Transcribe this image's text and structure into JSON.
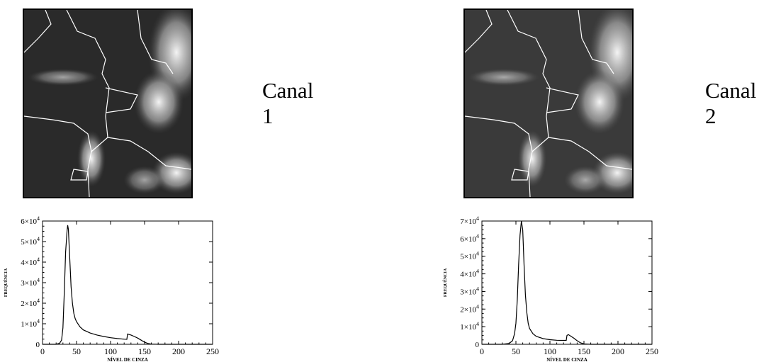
{
  "panels": [
    {
      "label": "Canal 1",
      "image_description_icon": "satellite-image-icon",
      "chart_data": {
        "type": "line",
        "xlabel": "NÍVEL DE CINZA",
        "ylabel": "FREQUÊNCIA",
        "xlim": [
          0,
          250
        ],
        "ylim": [
          0,
          60000
        ],
        "x_ticks": [
          "0",
          "50",
          "100",
          "150",
          "200",
          "250"
        ],
        "y_ticks": [
          {
            "base": "0",
            "exp": ""
          },
          {
            "base": "1×10",
            "exp": "4"
          },
          {
            "base": "2×10",
            "exp": "4"
          },
          {
            "base": "3×10",
            "exp": "4"
          },
          {
            "base": "4×10",
            "exp": "4"
          },
          {
            "base": "5×10",
            "exp": "4"
          },
          {
            "base": "6×10",
            "exp": "4"
          }
        ],
        "x": [
          0,
          20,
          25,
          28,
          30,
          32,
          34,
          36,
          37,
          38,
          40,
          42,
          44,
          46,
          48,
          50,
          55,
          60,
          70,
          80,
          90,
          100,
          110,
          120,
          124,
          125,
          127,
          130,
          135,
          140,
          145,
          150,
          155,
          160,
          170,
          180,
          250
        ],
        "values": [
          0,
          0,
          500,
          2000,
          8000,
          25000,
          45000,
          55000,
          58000,
          56000,
          42000,
          28000,
          20000,
          15000,
          12500,
          11000,
          8500,
          7000,
          5500,
          4500,
          3800,
          3200,
          2800,
          2500,
          2400,
          5000,
          4800,
          4500,
          3800,
          3000,
          2000,
          1000,
          400,
          100,
          0,
          0,
          0
        ]
      }
    },
    {
      "label": "Canal 2",
      "image_description_icon": "satellite-image-icon",
      "chart_data": {
        "type": "line",
        "xlabel": "NÍVEL DE CINZA",
        "ylabel": "FREQUÊNCIA",
        "xlim": [
          0,
          250
        ],
        "ylim": [
          0,
          70000
        ],
        "x_ticks": [
          "0",
          "50",
          "100",
          "150",
          "200",
          "250"
        ],
        "y_ticks": [
          {
            "base": "0",
            "exp": ""
          },
          {
            "base": "1×10",
            "exp": "4"
          },
          {
            "base": "2×10",
            "exp": "4"
          },
          {
            "base": "3×10",
            "exp": "4"
          },
          {
            "base": "4×10",
            "exp": "4"
          },
          {
            "base": "5×10",
            "exp": "4"
          },
          {
            "base": "6×10",
            "exp": "4"
          },
          {
            "base": "7×10",
            "exp": "4"
          }
        ],
        "x": [
          0,
          30,
          40,
          45,
          48,
          50,
          52,
          54,
          56,
          58,
          60,
          62,
          64,
          66,
          68,
          70,
          75,
          80,
          90,
          100,
          110,
          120,
          124,
          125,
          127,
          130,
          135,
          140,
          145,
          150,
          160,
          250
        ],
        "values": [
          0,
          0,
          500,
          2000,
          6000,
          12000,
          25000,
          45000,
          62000,
          70000,
          65000,
          45000,
          28000,
          18000,
          12000,
          9000,
          6000,
          4500,
          3200,
          2600,
          2300,
          2200,
          2200,
          5000,
          5500,
          4800,
          3500,
          2000,
          800,
          200,
          0,
          0
        ]
      }
    }
  ]
}
